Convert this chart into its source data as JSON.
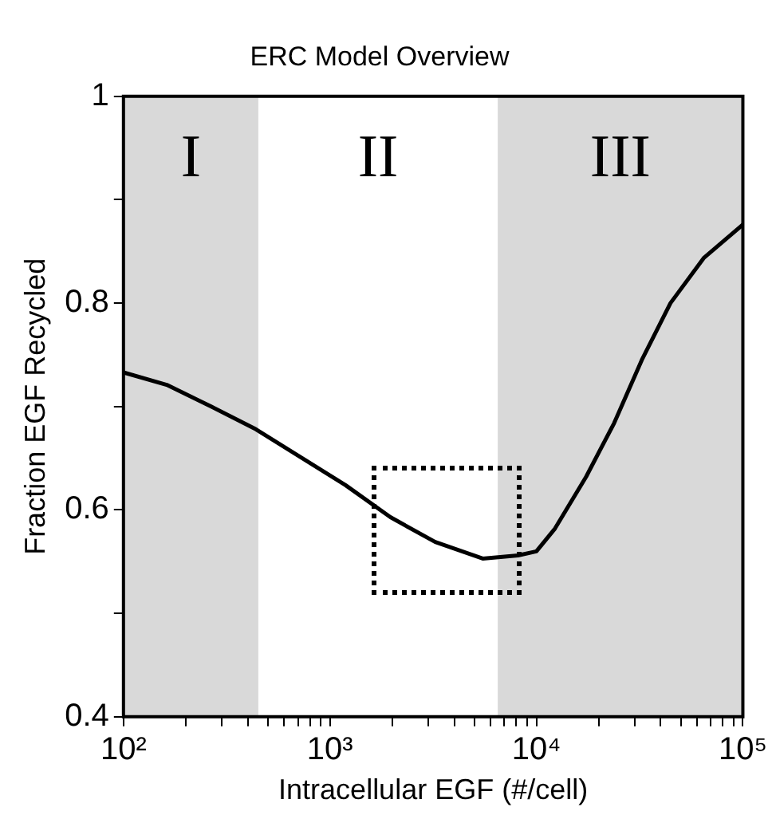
{
  "chart_data": {
    "type": "line",
    "title": "ERC Model Overview",
    "xlabel": "Intracellular EGF (#/cell)",
    "ylabel": "Fraction EGF Recycled",
    "log": "x",
    "xlim": [
      100,
      100000
    ],
    "xticks": [
      {
        "value": 100,
        "label": "10²"
      },
      {
        "value": 200,
        "label": null
      },
      {
        "value": 300,
        "label": null
      },
      {
        "value": 400,
        "label": null
      },
      {
        "value": 500,
        "label": null
      },
      {
        "value": 600,
        "label": null
      },
      {
        "value": 700,
        "label": null
      },
      {
        "value": 800,
        "label": null
      },
      {
        "value": 900,
        "label": null
      },
      {
        "value": 1000,
        "label": "10³"
      },
      {
        "value": 2000,
        "label": null
      },
      {
        "value": 3000,
        "label": null
      },
      {
        "value": 4000,
        "label": null
      },
      {
        "value": 5000,
        "label": null
      },
      {
        "value": 6000,
        "label": null
      },
      {
        "value": 7000,
        "label": null
      },
      {
        "value": 8000,
        "label": null
      },
      {
        "value": 9000,
        "label": null
      },
      {
        "value": 10000,
        "label": "10⁴"
      },
      {
        "value": 20000,
        "label": null
      },
      {
        "value": 30000,
        "label": null
      },
      {
        "value": 40000,
        "label": null
      },
      {
        "value": 50000,
        "label": null
      },
      {
        "value": 60000,
        "label": null
      },
      {
        "value": 70000,
        "label": null
      },
      {
        "value": 80000,
        "label": null
      },
      {
        "value": 90000,
        "label": null
      },
      {
        "value": 100000,
        "label": "10⁵"
      }
    ],
    "ylim": [
      0.4,
      1
    ],
    "yticks": [
      0.4,
      {
        "value": 0.5,
        "label": null
      },
      0.6,
      {
        "value": 0.7,
        "label": null
      },
      0.8,
      {
        "value": 0.9,
        "label": null
      },
      1
    ],
    "grid": false,
    "legend": false,
    "marker": "none",
    "line_style": "solid",
    "x": [
      100,
      162,
      266,
      438,
      722,
      1190,
      1963,
      3236,
      5495,
      8150,
      10000,
      12300,
      17400,
      23800,
      32400,
      44600,
      64900,
      100000
    ],
    "series": [
      {
        "color": "#000000",
        "values": [
          0.733,
          0.721,
          0.7,
          0.678,
          0.651,
          0.624,
          0.593,
          0.569,
          0.553,
          0.556,
          0.56,
          0.582,
          0.632,
          0.684,
          0.745,
          0.8,
          0.844,
          0.876
        ]
      }
    ],
    "bands": [
      {
        "axis": "x",
        "from": 100,
        "to": 450,
        "label": "I",
        "color": "#d9d9d9"
      },
      {
        "axis": "x",
        "from": 6500,
        "to": 100000,
        "label": "III",
        "color": "#d9d9d9"
      }
    ],
    "annotations": [
      "II"
    ]
  }
}
